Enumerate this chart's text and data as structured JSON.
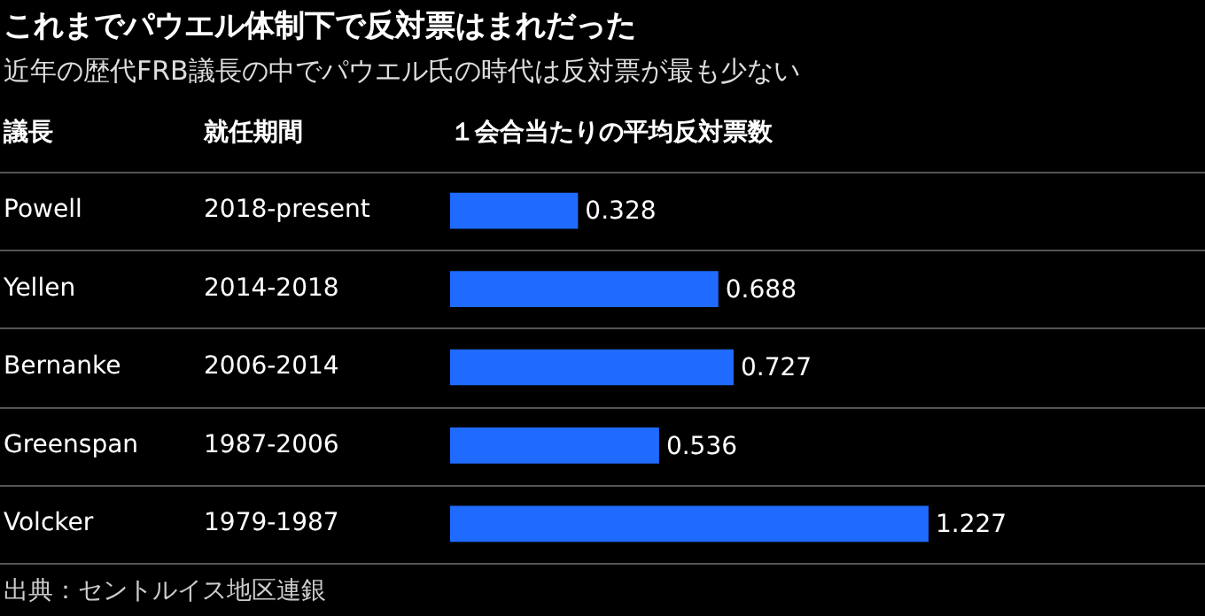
{
  "chart_data": {
    "type": "bar",
    "orientation": "horizontal",
    "title": "これまでパウエル体制下で反対票はまれだった",
    "subtitle": "近年の歴代FRB議長の中でパウエル氏の時代は反対票が最も少ない",
    "ylabel": "議長",
    "xlabel": "１会合当たりの平均反対票数",
    "categories": [
      "Powell",
      "Yellen",
      "Bernanke",
      "Greenspan",
      "Volcker"
    ],
    "values": [
      0.328,
      0.688,
      0.727,
      0.536,
      1.227
    ],
    "color": "#1f6bff",
    "data_labels": true,
    "annotations": [
      "就任期間",
      "2018-present",
      "2014-2018",
      "2006-2014",
      "1987-2006",
      "1979-1987",
      "出典：セントルイス地区連銀"
    ]
  }
}
